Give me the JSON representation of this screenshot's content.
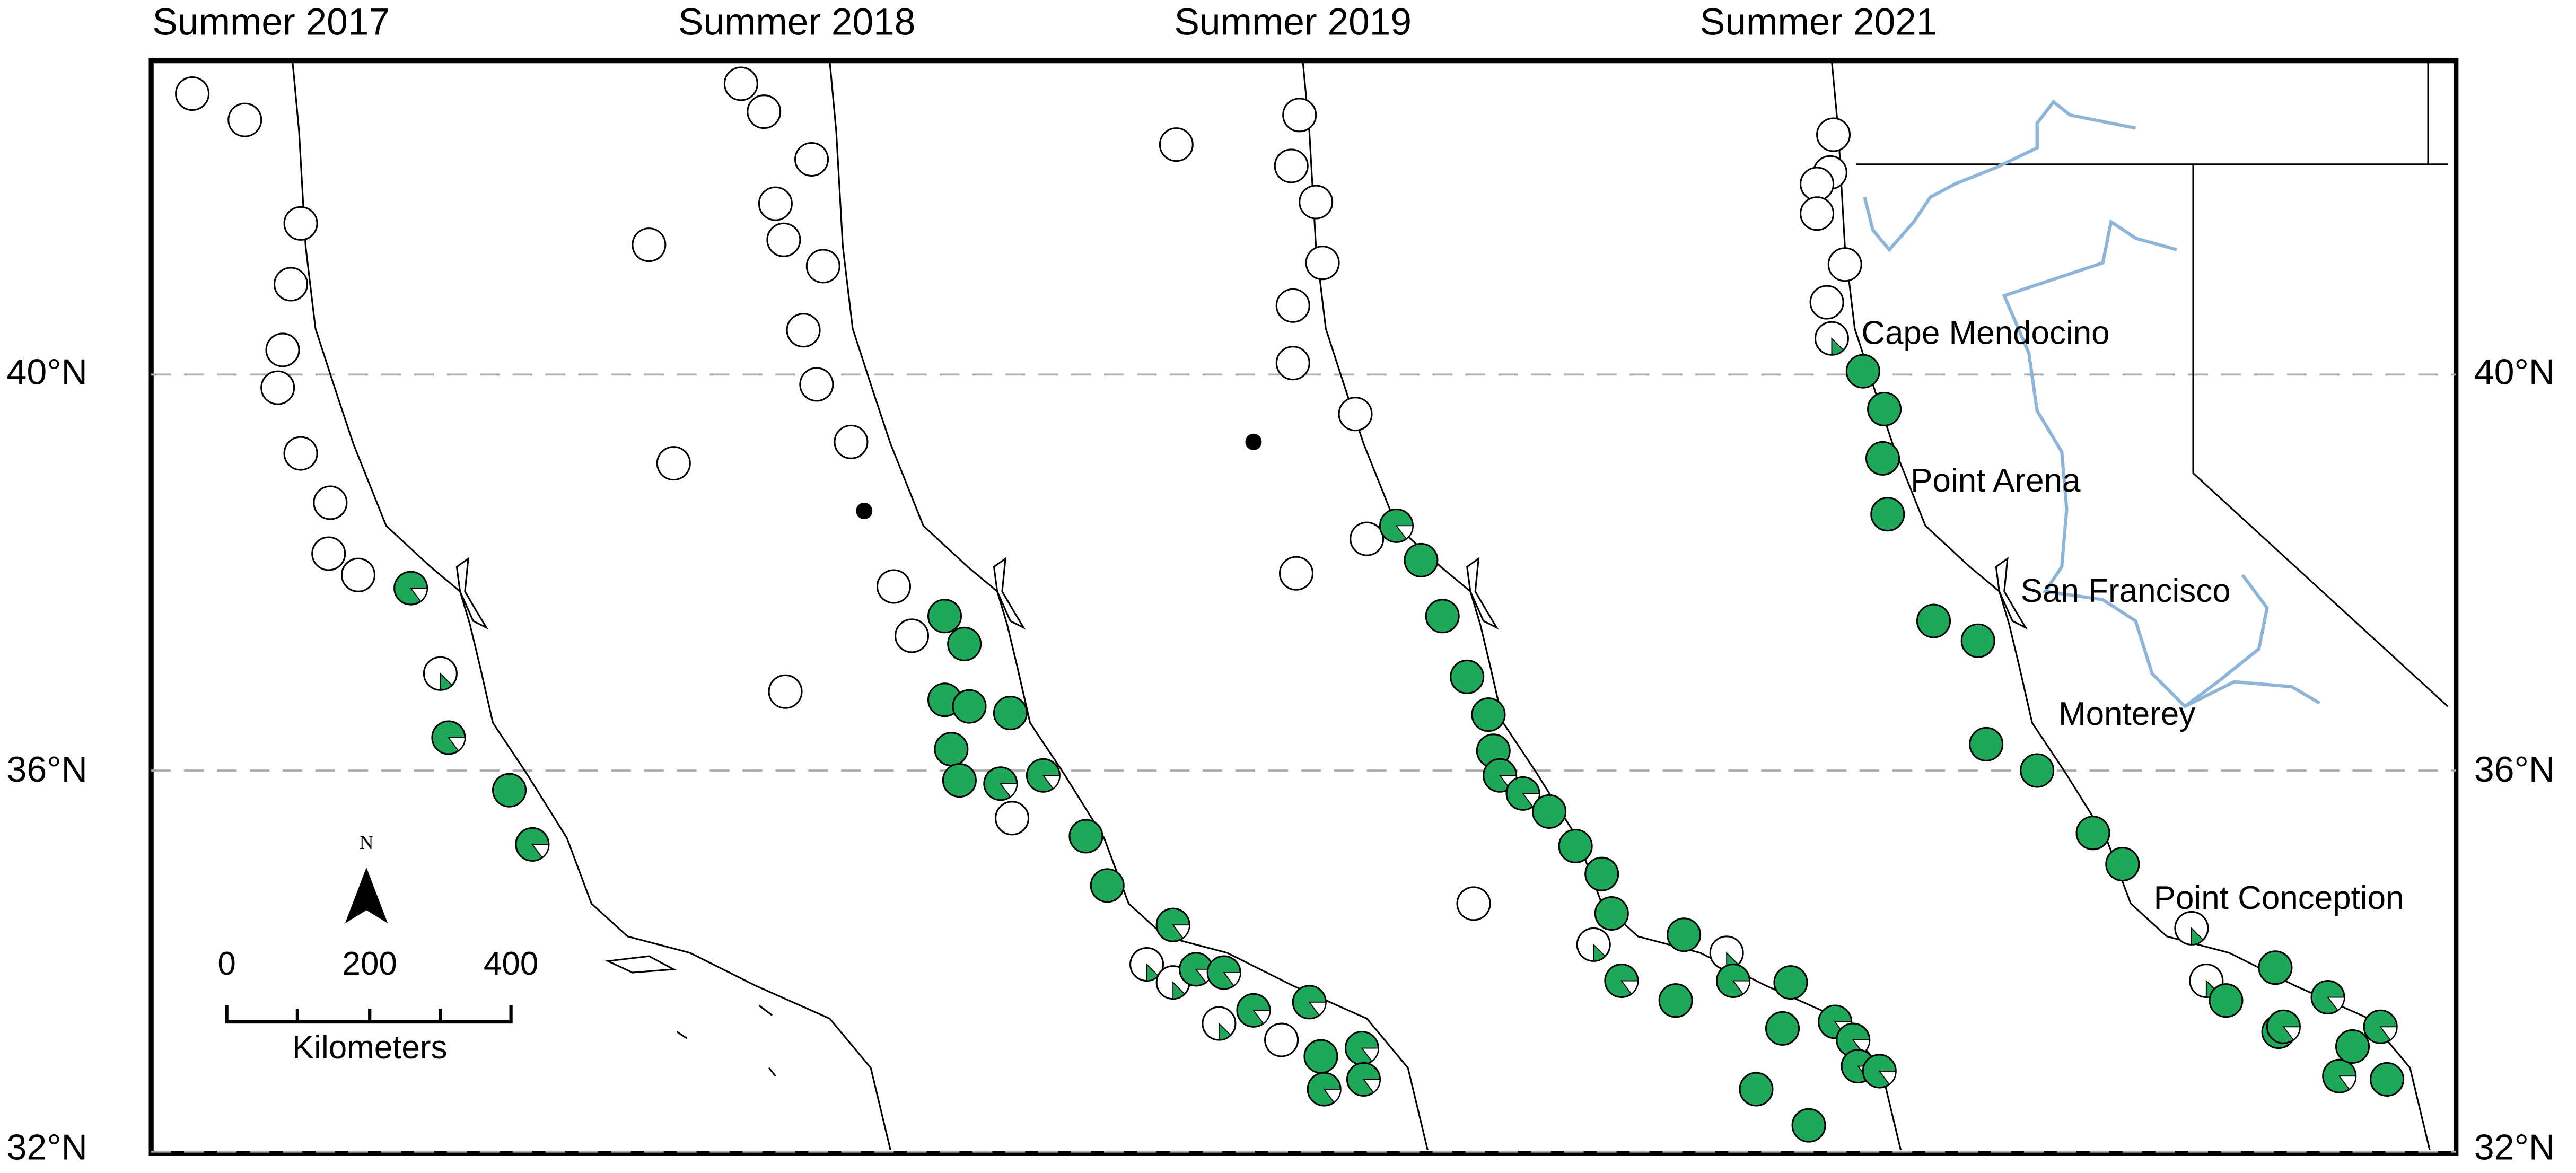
{
  "panels": [
    {
      "title": "Summer 2017"
    },
    {
      "title": "Summer 2018"
    },
    {
      "title": "Summer 2019"
    },
    {
      "title": "Summer 2021"
    }
  ],
  "latitudes": [
    "40°N",
    "36°N",
    "32°N"
  ],
  "places": [
    "Cape Mendocino",
    "Point Arena",
    "San Francisco",
    "Monterey",
    "Point Conception"
  ],
  "scale_bar": {
    "ticks": [
      "0",
      "200",
      "400"
    ],
    "unit": "Kilometers"
  },
  "north_arrow": "N"
}
